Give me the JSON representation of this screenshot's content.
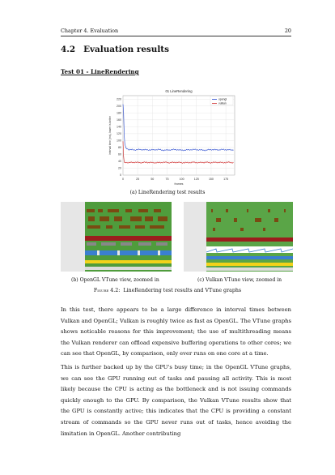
{
  "header": {
    "chapter": "Chapter 4. Evaluation",
    "page_number": "20"
  },
  "section": {
    "number": "4.2",
    "title": "Evaluation results"
  },
  "subsection": {
    "title": "Test 01 - LineRendering"
  },
  "chart_data": {
    "type": "line",
    "title": "01 LineRendering",
    "xlabel": "frames",
    "ylabel": "interval time (ms), lower is better",
    "xlim": [
      0,
      190
    ],
    "ylim": [
      0,
      230
    ],
    "xticks": [
      0,
      25,
      50,
      75,
      100,
      125,
      150,
      175
    ],
    "yticks": [
      0,
      20,
      40,
      60,
      80,
      100,
      120,
      140,
      160,
      180,
      200,
      220
    ],
    "grid": true,
    "legend_position": "top-right",
    "series": [
      {
        "name": "opengl",
        "color": "#2244cc",
        "x": [
          0,
          1,
          2,
          3,
          5,
          10,
          20,
          30,
          40,
          50,
          60,
          70,
          80,
          90,
          100,
          110,
          120,
          130,
          140,
          150,
          160,
          170,
          180,
          188
        ],
        "values": [
          205,
          180,
          120,
          92,
          78,
          74,
          73,
          74,
          73,
          73,
          74,
          72,
          73,
          74,
          72,
          73,
          74,
          73,
          72,
          74,
          73,
          74,
          73,
          73
        ]
      },
      {
        "name": "vulkan",
        "color": "#cc2222",
        "x": [
          0,
          1,
          2,
          3,
          5,
          10,
          20,
          30,
          40,
          50,
          60,
          70,
          80,
          90,
          100,
          110,
          120,
          130,
          140,
          150,
          160,
          170,
          180,
          188
        ],
        "values": [
          98,
          55,
          38,
          36,
          37,
          36,
          37,
          36,
          37,
          36,
          36,
          37,
          36,
          37,
          36,
          36,
          37,
          36,
          37,
          36,
          37,
          36,
          37,
          36
        ]
      }
    ]
  },
  "figure": {
    "subcaption_a": "(a) LineRendering test results",
    "subcaption_b": "(b) OpenGL VTune view, zoomed in",
    "subcaption_c": "(c) Vulkan VTune view, zoomed in",
    "caption_label": "Figure 4.2:",
    "caption_text": "LineRendering test results and VTune graphs"
  },
  "paragraphs": [
    "In this test, there appears to be a large difference in interval times between Vulkan and OpenGL; Vulkan is roughly twice as fast as OpenGL. The VTune graphs shows noticable reasons for this improvement; the use of multithreading means the Vulkan renderer can offload expensive buffering operations to other cores; we can see that OpenGL, by comparison, only ever runs on one core at a time.",
    "This is further backed up by the GPU's busy time; in the OpenGL VTune graphs, we can see the GPU running out of tasks and pausing all activity. This is most likely because the CPU is acting as the bottleneck and is not issuing commands quickly enough to the GPU. By comparison, the Vulkan VTune results show that the GPU is constantly active; this indicates that the CPU is providing a constant stream of commands so the GPU never runs out of tasks, hence avoiding the limitation in OpenGL. Another contributing"
  ]
}
